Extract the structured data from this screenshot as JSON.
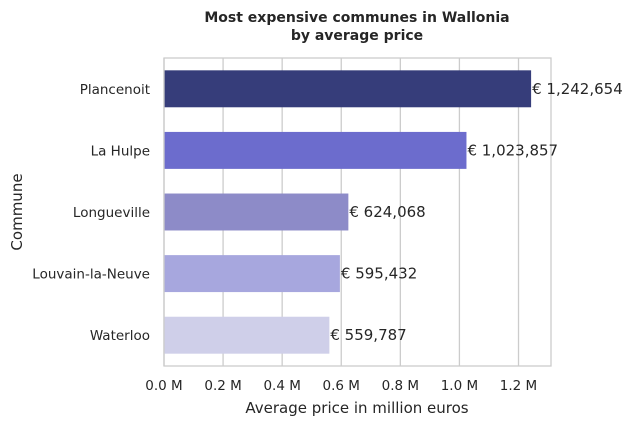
{
  "chart_data": {
    "type": "bar",
    "orientation": "horizontal",
    "title": "Most expensive communes in Wallonia\nby average price",
    "xlabel": "Average price in million euros",
    "ylabel": "Commune",
    "categories": [
      "Plancenoit",
      "La Hulpe",
      "Longueville",
      "Louvain-la-Neuve",
      "Waterloo"
    ],
    "values": [
      1242654,
      1023857,
      624068,
      595432,
      559787
    ],
    "value_labels": [
      "€ 1,242,654",
      "€ 1,023,857",
      "€ 624,068",
      "€ 595,432",
      "€ 559,787"
    ],
    "colors": [
      "#363d7a",
      "#6c6ccd",
      "#8d8bc8",
      "#a7a7de",
      "#cfcfe9"
    ],
    "xlim": [
      0,
      1310000
    ],
    "xticks": [
      0,
      200000,
      400000,
      600000,
      800000,
      1000000,
      1200000
    ],
    "xtick_labels": [
      "0.0 M",
      "0.2 M",
      "0.4 M",
      "0.6 M",
      "0.8 M",
      "1.0 M",
      "1.2 M"
    ],
    "grid": "vertical"
  }
}
